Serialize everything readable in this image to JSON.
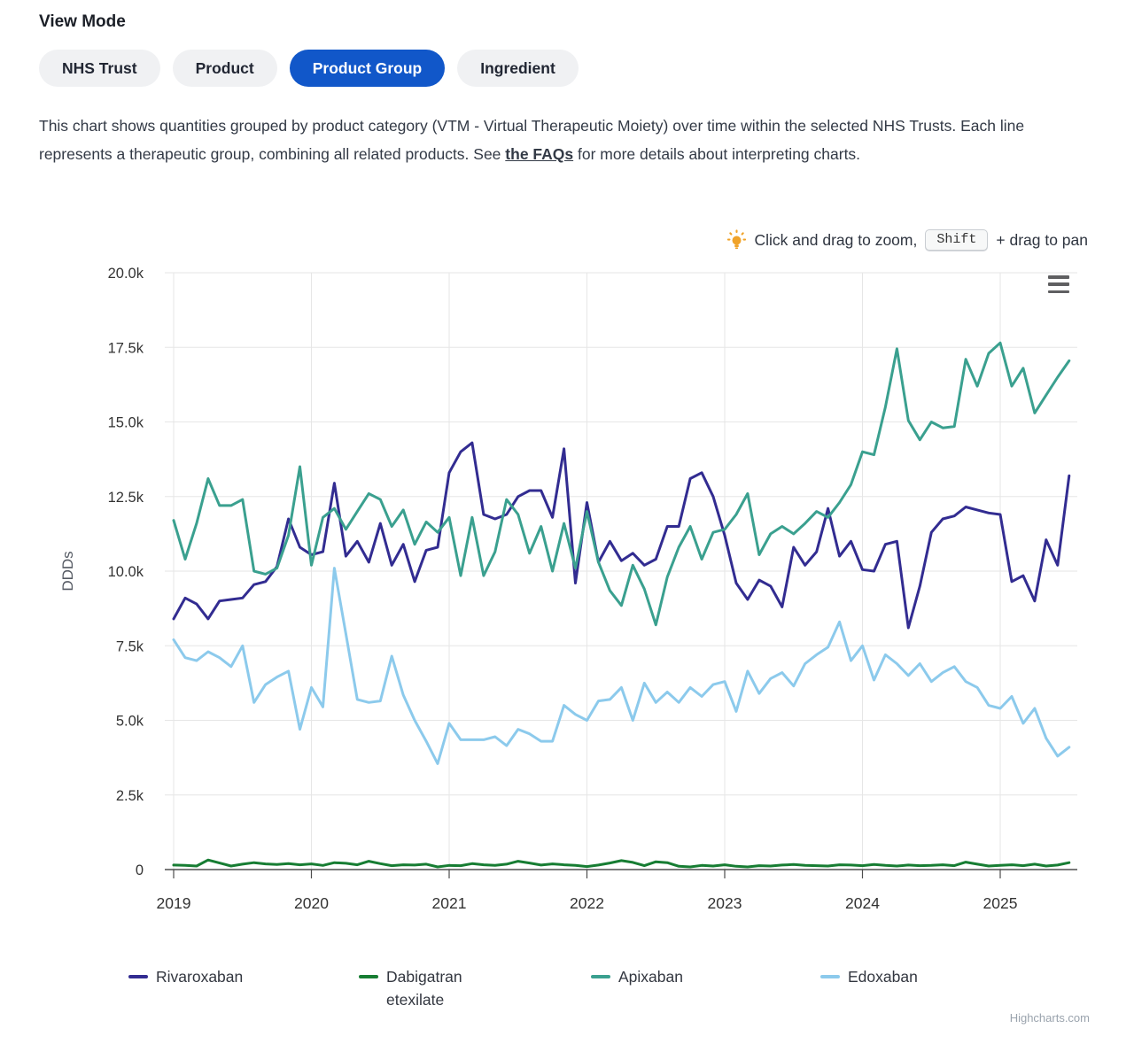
{
  "view_mode": {
    "heading": "View Mode",
    "options": [
      {
        "label": "NHS Trust",
        "active": false
      },
      {
        "label": "Product",
        "active": false
      },
      {
        "label": "Product Group",
        "active": true
      },
      {
        "label": "Ingredient",
        "active": false
      }
    ]
  },
  "description": {
    "before": "This chart shows quantities grouped by product category (VTM - Virtual Therapeutic Moiety) over time within the selected NHS Trusts. Each line represents a therapeutic group, combining all related products. See ",
    "link_text": "the FAQs",
    "after": " for more details about interpreting charts."
  },
  "hint": {
    "zoom_text": "Click and drag to zoom,",
    "key_label": "Shift",
    "pan_text": "+ drag to pan"
  },
  "colors": {
    "accent": "#1157c9",
    "gridline": "#e6e6e6",
    "axis_line": "#4d4d4d",
    "bulb_icon": "#f0a32a"
  },
  "chart_data": {
    "type": "line",
    "title": "",
    "xlabel": "",
    "ylabel": "DDDs",
    "ylim": [
      0,
      20000
    ],
    "grid": true,
    "legend_position": "bottom",
    "x_start": "2019-01",
    "x_interval": "month",
    "yticks": [
      {
        "value": 0,
        "label": "0"
      },
      {
        "value": 2500,
        "label": "2.5k"
      },
      {
        "value": 5000,
        "label": "5.0k"
      },
      {
        "value": 7500,
        "label": "7.5k"
      },
      {
        "value": 10000,
        "label": "10.0k"
      },
      {
        "value": 12500,
        "label": "12.5k"
      },
      {
        "value": 15000,
        "label": "15.0k"
      },
      {
        "value": 17500,
        "label": "17.5k"
      },
      {
        "value": 20000,
        "label": "20.0k"
      }
    ],
    "xticks": [
      "2019",
      "2020",
      "2021",
      "2022",
      "2023",
      "2024",
      "2025"
    ],
    "series": [
      {
        "name": "Rivaroxaban",
        "color": "#322c91",
        "values": [
          8400,
          9100,
          8900,
          8400,
          9000,
          9050,
          9100,
          9550,
          9650,
          10150,
          11750,
          10800,
          10550,
          10650,
          12950,
          10500,
          11000,
          10300,
          11600,
          10200,
          10900,
          9650,
          10700,
          10800,
          13300,
          14000,
          14300,
          11900,
          11750,
          11900,
          12500,
          12700,
          12700,
          11800,
          14100,
          9600,
          12300,
          10300,
          11000,
          10350,
          10600,
          10200,
          10400,
          11500,
          11500,
          13100,
          13300,
          12500,
          11200,
          9600,
          9050,
          9700,
          9500,
          8800,
          10800,
          10200,
          10650,
          12100,
          10500,
          11000,
          10050,
          10000,
          10900,
          11000,
          8100,
          9500,
          11300,
          11750,
          11850,
          12150,
          12050,
          11950,
          11900,
          9650,
          9850,
          9000,
          11050,
          10200,
          13200
        ]
      },
      {
        "name": "Dabigatran etexilate",
        "color": "#177d33",
        "values": [
          150,
          140,
          120,
          320,
          220,
          120,
          180,
          230,
          190,
          170,
          200,
          160,
          190,
          140,
          230,
          210,
          160,
          280,
          200,
          130,
          160,
          150,
          180,
          90,
          140,
          130,
          200,
          160,
          140,
          180,
          280,
          220,
          150,
          190,
          160,
          140,
          100,
          150,
          220,
          300,
          240,
          130,
          260,
          230,
          110,
          90,
          140,
          120,
          160,
          110,
          90,
          130,
          120,
          150,
          170,
          140,
          130,
          120,
          160,
          150,
          130,
          170,
          140,
          120,
          150,
          130,
          140,
          160,
          130,
          250,
          180,
          120,
          140,
          160,
          130,
          180,
          120,
          150,
          230
        ]
      },
      {
        "name": "Apixaban",
        "color": "#3aa08f",
        "values": [
          11700,
          10400,
          11600,
          13100,
          12200,
          12200,
          12400,
          10000,
          9900,
          10100,
          11200,
          13500,
          10200,
          11800,
          12100,
          11400,
          12000,
          12600,
          12400,
          11500,
          12050,
          10900,
          11650,
          11300,
          11800,
          9850,
          11800,
          9850,
          10650,
          12400,
          11900,
          10600,
          11500,
          10000,
          11600,
          10100,
          12000,
          10300,
          9350,
          8850,
          10200,
          9400,
          8200,
          9800,
          10800,
          11500,
          10400,
          11300,
          11400,
          11900,
          12600,
          10550,
          11250,
          11500,
          11250,
          11600,
          12000,
          11800,
          12300,
          12900,
          14000,
          13900,
          15500,
          17450,
          15050,
          14400,
          15000,
          14800,
          14850,
          17100,
          16200,
          17300,
          17650,
          16200,
          16800,
          15300,
          15900,
          16500,
          17050
        ]
      },
      {
        "name": "Edoxaban",
        "color": "#8ccaec",
        "values": [
          7700,
          7100,
          7000,
          7300,
          7100,
          6800,
          7500,
          5600,
          6200,
          6450,
          6650,
          4700,
          6100,
          5450,
          10100,
          7900,
          5700,
          5600,
          5650,
          7150,
          5850,
          5000,
          4300,
          3550,
          4900,
          4350,
          4350,
          4350,
          4450,
          4150,
          4700,
          4550,
          4300,
          4300,
          5500,
          5200,
          5000,
          5650,
          5700,
          6100,
          5000,
          6250,
          5600,
          5950,
          5600,
          6100,
          5800,
          6200,
          6300,
          5300,
          6650,
          5900,
          6400,
          6600,
          6150,
          6900,
          7200,
          7450,
          8300,
          7000,
          7500,
          6350,
          7200,
          6900,
          6500,
          6900,
          6300,
          6600,
          6800,
          6300,
          6100,
          5500,
          5400,
          5800,
          4900,
          5400,
          4400,
          3800,
          4100
        ]
      }
    ]
  },
  "credit": "Highcharts.com"
}
